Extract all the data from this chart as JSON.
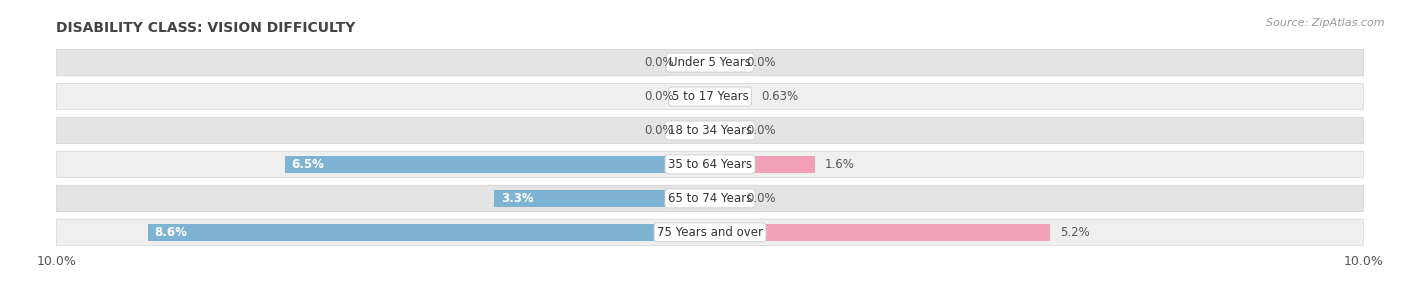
{
  "title": "DISABILITY CLASS: VISION DIFFICULTY",
  "source": "Source: ZipAtlas.com",
  "categories": [
    "Under 5 Years",
    "5 to 17 Years",
    "18 to 34 Years",
    "35 to 64 Years",
    "65 to 74 Years",
    "75 Years and over"
  ],
  "male_values": [
    0.0,
    0.0,
    0.0,
    6.5,
    3.3,
    8.6
  ],
  "female_values": [
    0.0,
    0.63,
    0.0,
    1.6,
    0.0,
    5.2
  ],
  "male_color": "#7fb3d3",
  "female_color": "#f2a0b8",
  "row_colors": [
    "#efefef",
    "#e4e4e4"
  ],
  "x_min": -10.0,
  "x_max": 10.0,
  "title_fontsize": 10,
  "source_fontsize": 8,
  "label_fontsize": 8.5,
  "category_fontsize": 8.5,
  "axis_fontsize": 9
}
